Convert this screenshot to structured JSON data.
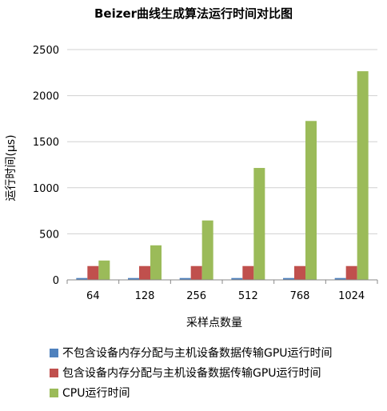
{
  "chart_data": {
    "type": "bar",
    "title": "Beizer曲线生成算法运行时间对比图",
    "xlabel": "采样点数量",
    "ylabel": "运行时间(μs)",
    "categories": [
      "64",
      "128",
      "256",
      "512",
      "768",
      "1024"
    ],
    "ylim": [
      0,
      2500
    ],
    "yticks": [
      0,
      500,
      1000,
      1500,
      2000,
      2500
    ],
    "ytick_labels": [
      "0",
      "500",
      "1000",
      "1500",
      "2000",
      "2500"
    ],
    "grid": true,
    "legend_position": "bottom",
    "series": [
      {
        "name": "不包含设备内存分配与主机设备数据传输GPU运行时间",
        "color": "#4f81bd",
        "values": [
          20,
          20,
          20,
          20,
          20,
          20
        ]
      },
      {
        "name": "包含设备内存分配与主机设备数据传输GPU运行时间",
        "color": "#c0504d",
        "values": [
          150,
          150,
          150,
          150,
          150,
          150
        ]
      },
      {
        "name": "CPU运行时间",
        "color": "#9bbb59",
        "values": [
          210,
          375,
          645,
          1215,
          1725,
          2265
        ]
      }
    ]
  }
}
